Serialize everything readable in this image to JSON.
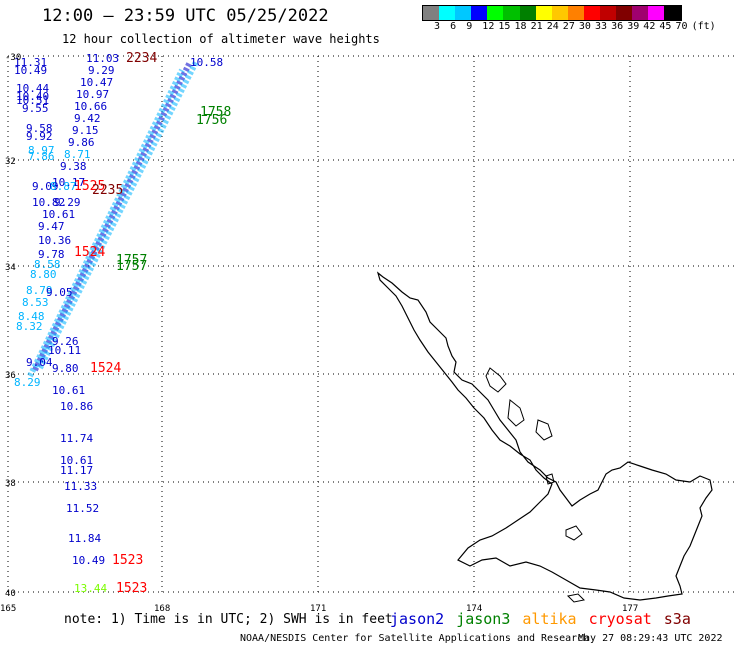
{
  "header": {
    "title": "12:00 – 23:59 UTC 05/25/2022",
    "subtitle": "12 hour collection of altimeter wave heights"
  },
  "colorbar": {
    "colors": [
      "#808080",
      "#00ffff",
      "#00c8ff",
      "#0000ff",
      "#00ff00",
      "#00c000",
      "#008000",
      "#ffff00",
      "#ffc800",
      "#ff8000",
      "#ff0000",
      "#c00000",
      "#800000",
      "#a0006e",
      "#ff00ff",
      "#000000"
    ],
    "labels": [
      "3",
      "6",
      "9",
      "12",
      "15",
      "18",
      "21",
      "24",
      "27",
      "30",
      "33",
      "36",
      "39",
      "42",
      "45",
      "70",
      "(ft)"
    ]
  },
  "axes": {
    "lon_labels": [
      "165",
      "168",
      "171",
      "174",
      "177"
    ],
    "lat_labels": [
      "-30",
      "32",
      "34",
      "36",
      "38",
      "40"
    ]
  },
  "satellites": [
    {
      "name": "jason2",
      "color": "#0000cc"
    },
    {
      "name": "jason3",
      "color": "#008000"
    },
    {
      "name": "altika",
      "color": "#ff9900"
    },
    {
      "name": "cryosat",
      "color": "#ff0000"
    },
    {
      "name": "s3a",
      "color": "#800000"
    }
  ],
  "observations": [
    {
      "text": "11.31",
      "color": "#0000cc"
    },
    {
      "text": "10.49",
      "color": "#0000cc"
    },
    {
      "text": "11.03",
      "color": "#0000cc"
    },
    {
      "text": "2234",
      "color": "#800000"
    },
    {
      "text": "9.29",
      "color": "#0000cc"
    },
    {
      "text": "10.47",
      "color": "#0000cc"
    },
    {
      "text": "10.97",
      "color": "#0000cc"
    },
    {
      "text": "10.66",
      "color": "#0000cc"
    },
    {
      "text": "9.42",
      "color": "#0000cc"
    },
    {
      "text": "9.15",
      "color": "#0000cc"
    },
    {
      "text": "9.86",
      "color": "#0000cc"
    },
    {
      "text": "10.44",
      "color": "#0000cc"
    },
    {
      "text": "10.40",
      "color": "#0000cc"
    },
    {
      "text": "10.51",
      "color": "#0000cc"
    },
    {
      "text": "9.55",
      "color": "#0000cc"
    },
    {
      "text": "9.58",
      "color": "#0000cc"
    },
    {
      "text": "9.92",
      "color": "#0000cc"
    },
    {
      "text": "8.97",
      "color": "#00b4ff"
    },
    {
      "text": "7.86",
      "color": "#00b4ff"
    },
    {
      "text": "8.71",
      "color": "#00b4ff"
    },
    {
      "text": "9.38",
      "color": "#0000cc"
    },
    {
      "text": "10.17",
      "color": "#0000cc"
    },
    {
      "text": "9.09",
      "color": "#0000cc"
    },
    {
      "text": "8.87",
      "color": "#00b4ff"
    },
    {
      "text": "1525",
      "color": "#ff0000"
    },
    {
      "text": "2235",
      "color": "#800000"
    },
    {
      "text": "10.82",
      "color": "#0000cc"
    },
    {
      "text": "9.29",
      "color": "#0000cc"
    },
    {
      "text": "10.61",
      "color": "#0000cc"
    },
    {
      "text": "9.47",
      "color": "#0000cc"
    },
    {
      "text": "10.36",
      "color": "#0000cc"
    },
    {
      "text": "9.78",
      "color": "#0000cc"
    },
    {
      "text": "1524",
      "color": "#ff0000"
    },
    {
      "text": "1757",
      "color": "#008000"
    },
    {
      "text": "8.58",
      "color": "#00b4ff"
    },
    {
      "text": "8.80",
      "color": "#00b4ff"
    },
    {
      "text": "8.79",
      "color": "#00b4ff"
    },
    {
      "text": "9.05",
      "color": "#0000cc"
    },
    {
      "text": "8.53",
      "color": "#00b4ff"
    },
    {
      "text": "8.48",
      "color": "#00b4ff"
    },
    {
      "text": "8.32",
      "color": "#00b4ff"
    },
    {
      "text": "9.26",
      "color": "#0000cc"
    },
    {
      "text": "10.11",
      "color": "#0000cc"
    },
    {
      "text": "9.04",
      "color": "#0000cc"
    },
    {
      "text": "8.29",
      "color": "#00b4ff"
    },
    {
      "text": "9.80",
      "color": "#0000cc"
    },
    {
      "text": "1524",
      "color": "#ff0000"
    },
    {
      "text": "10.61",
      "color": "#0000cc"
    },
    {
      "text": "10.86",
      "color": "#0000cc"
    },
    {
      "text": "11.74",
      "color": "#0000cc"
    },
    {
      "text": "10.61",
      "color": "#0000cc"
    },
    {
      "text": "11.17",
      "color": "#0000cc"
    },
    {
      "text": "11.33",
      "color": "#0000cc"
    },
    {
      "text": "11.52",
      "color": "#0000cc"
    },
    {
      "text": "11.84",
      "color": "#0000cc"
    },
    {
      "text": "10.49",
      "color": "#0000cc"
    },
    {
      "text": "1523",
      "color": "#ff0000"
    },
    {
      "text": "13.44",
      "color": "#7cfc00"
    },
    {
      "text": "1523",
      "color": "#ff0000"
    },
    {
      "text": "10.58",
      "color": "#0000cc"
    },
    {
      "text": "1758",
      "color": "#008000"
    },
    {
      "text": "1756",
      "color": "#008000"
    },
    {
      "text": "1757",
      "color": "#008000"
    }
  ],
  "footer": {
    "note": "note: 1) Time is in UTC; 2) SWH is in feet",
    "credit": "NOAA/NESDIS Center for Satellite Applications and Research",
    "timestamp": "May 27 08:29:43 UTC 2022"
  }
}
